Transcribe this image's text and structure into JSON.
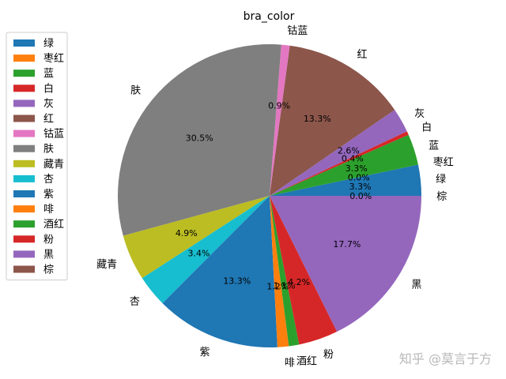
{
  "chart_data": {
    "type": "pie",
    "title": "bra_color",
    "start_angle_deg": 0,
    "direction": "counterclockwise",
    "legend_position": "left",
    "slices": [
      {
        "label": "绿",
        "value": 3.3,
        "pct_label": "3.3%",
        "color": "#1f77b4"
      },
      {
        "label": "枣红",
        "value": 0.0,
        "pct_label": "0.0%",
        "color": "#ff7f0e"
      },
      {
        "label": "蓝",
        "value": 3.3,
        "pct_label": "3.3%",
        "color": "#2ca02c"
      },
      {
        "label": "白",
        "value": 0.4,
        "pct_label": "0.4%",
        "color": "#d62728"
      },
      {
        "label": "灰",
        "value": 2.6,
        "pct_label": "2.6%",
        "color": "#9467bd"
      },
      {
        "label": "红",
        "value": 13.3,
        "pct_label": "13.3%",
        "color": "#8c564b"
      },
      {
        "label": "钴蓝",
        "value": 0.9,
        "pct_label": "0.9%",
        "color": "#e377c2"
      },
      {
        "label": "肤",
        "value": 30.5,
        "pct_label": "30.5%",
        "color": "#7f7f7f"
      },
      {
        "label": "藏青",
        "value": 4.9,
        "pct_label": "4.9%",
        "color": "#bcbd22"
      },
      {
        "label": "杏",
        "value": 3.4,
        "pct_label": "3.4%",
        "color": "#17becf"
      },
      {
        "label": "紫",
        "value": 13.3,
        "pct_label": "13.3%",
        "color": "#1f77b4"
      },
      {
        "label": "啡",
        "value": 1.2,
        "pct_label": "1.2%",
        "color": "#ff7f0e"
      },
      {
        "label": "酒红",
        "value": 1.1,
        "pct_label": "1.1%",
        "color": "#2ca02c"
      },
      {
        "label": "粉",
        "value": 4.2,
        "pct_label": "4.2%",
        "color": "#d62728"
      },
      {
        "label": "黑",
        "value": 17.7,
        "pct_label": "17.7%",
        "color": "#9467bd"
      },
      {
        "label": "棕",
        "value": 0.0,
        "pct_label": "0.0%",
        "color": "#8c564b"
      }
    ]
  },
  "watermark": "知乎 @莫言于方"
}
